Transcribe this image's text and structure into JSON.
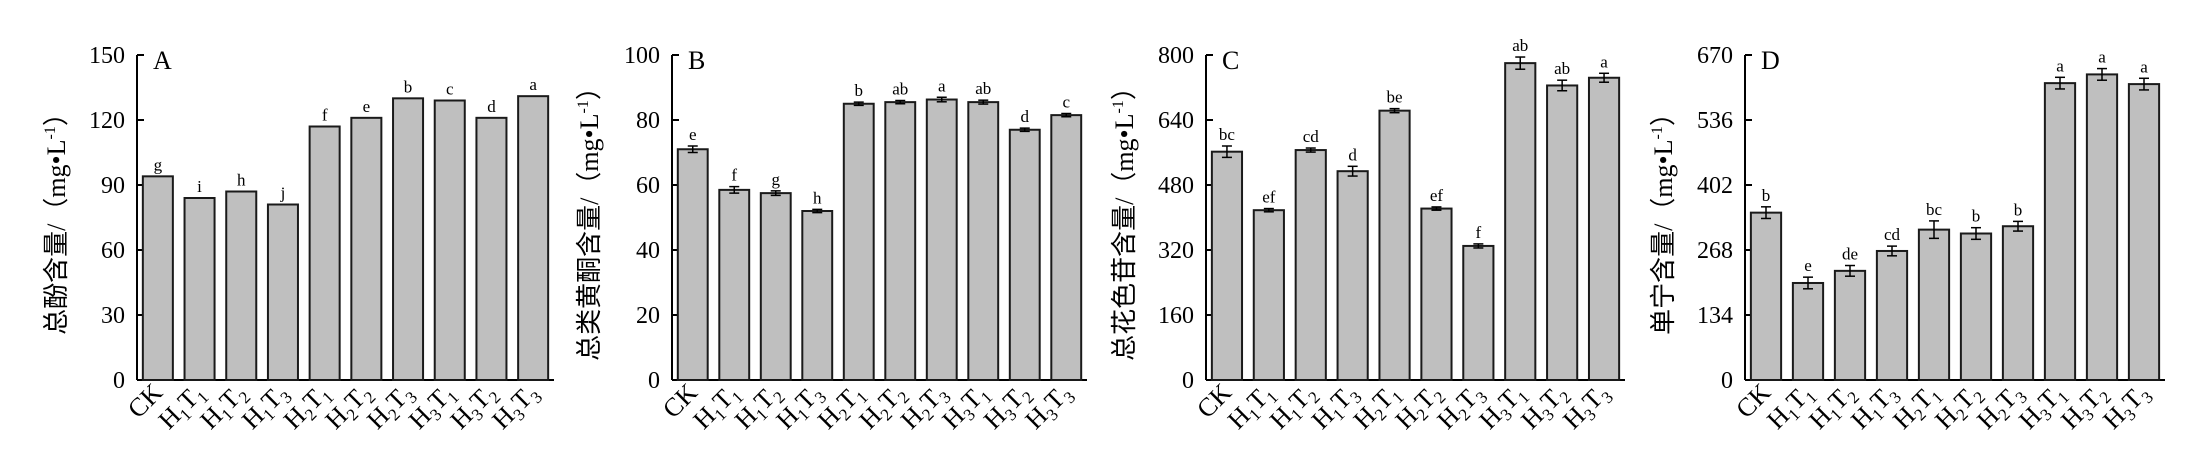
{
  "chart_data": [
    {
      "type": "bar",
      "label": "A",
      "ylabel_cn": "总酚含量/",
      "ylabel_unit": "（mg•L",
      "ylabel_sup": "-1",
      "ylabel_close": "）",
      "ylim": [
        0,
        150
      ],
      "yticks": [
        0,
        30,
        60,
        90,
        120,
        150
      ],
      "categories": [
        "CK",
        "H1T1",
        "H1T2",
        "H1T3",
        "H2T1",
        "H2T2",
        "H2T3",
        "H3T1",
        "H3T2",
        "H3T3"
      ],
      "values": [
        94,
        84,
        87,
        81,
        117,
        121,
        130,
        129,
        121,
        131
      ],
      "errors": [
        0,
        0,
        0,
        0,
        0,
        0,
        0,
        0,
        0,
        0
      ],
      "letters": [
        "g",
        "i",
        "h",
        "j",
        "f",
        "e",
        "b",
        "c",
        "d",
        "a"
      ]
    },
    {
      "type": "bar",
      "label": "B",
      "ylabel_cn": "总类黄酮含量/",
      "ylabel_unit": "（mg•L",
      "ylabel_sup": "-1",
      "ylabel_close": "）",
      "ylim": [
        0,
        100
      ],
      "yticks": [
        0,
        20,
        40,
        60,
        80,
        100
      ],
      "categories": [
        "CK",
        "H1T1",
        "H1T2",
        "H1T3",
        "H2T1",
        "H2T2",
        "H2T3",
        "H3T1",
        "H3T2",
        "H3T3"
      ],
      "values": [
        71,
        58.5,
        57.5,
        52,
        85,
        85.5,
        86.3,
        85.5,
        77,
        81.5
      ],
      "errors": [
        1.0,
        1.0,
        0.7,
        0.5,
        0.5,
        0.5,
        0.7,
        0.6,
        0.5,
        0.5
      ],
      "letters": [
        "e",
        "f",
        "g",
        "h",
        "b",
        "ab",
        "a",
        "ab",
        "d",
        "c"
      ]
    },
    {
      "type": "bar",
      "label": "C",
      "ylabel_cn": "总花色苷含量/",
      "ylabel_unit": "（mg•L",
      "ylabel_sup": "-1",
      "ylabel_close": "）",
      "ylim": [
        0,
        800
      ],
      "yticks": [
        0,
        160,
        320,
        480,
        640,
        800
      ],
      "categories": [
        "CK",
        "H1T1",
        "H1T2",
        "H1T3",
        "H2T1",
        "H2T2",
        "H2T3",
        "H3T1",
        "H3T2",
        "H3T3"
      ],
      "values": [
        562,
        418,
        566,
        514,
        663,
        422,
        330,
        780,
        725,
        744
      ],
      "errors": [
        14,
        4,
        5,
        12,
        5,
        4,
        5,
        15,
        13,
        11
      ],
      "letters": [
        "bc",
        "ef",
        "cd",
        "d",
        "be",
        "ef",
        "f",
        "ab",
        "ab",
        "a"
      ]
    },
    {
      "type": "bar",
      "label": "D",
      "ylabel_cn": "单宁含量/",
      "ylabel_unit": "（mg•L",
      "ylabel_sup": "-1",
      "ylabel_close": "）",
      "ylim": [
        0,
        670
      ],
      "yticks": [
        0,
        134,
        268,
        402,
        536,
        670
      ],
      "categories": [
        "CK",
        "H1T1",
        "H1T2",
        "H1T3",
        "H2T1",
        "H2T2",
        "H2T3",
        "H3T1",
        "H3T2",
        "H3T3"
      ],
      "values": [
        345,
        200,
        225,
        266,
        310,
        302,
        317,
        612,
        630,
        610
      ],
      "errors": [
        12,
        12,
        11,
        10,
        18,
        12,
        10,
        12,
        12,
        12
      ],
      "letters": [
        "b",
        "e",
        "de",
        "cd",
        "bc",
        "b",
        "b",
        "a",
        "a",
        "a"
      ]
    }
  ]
}
